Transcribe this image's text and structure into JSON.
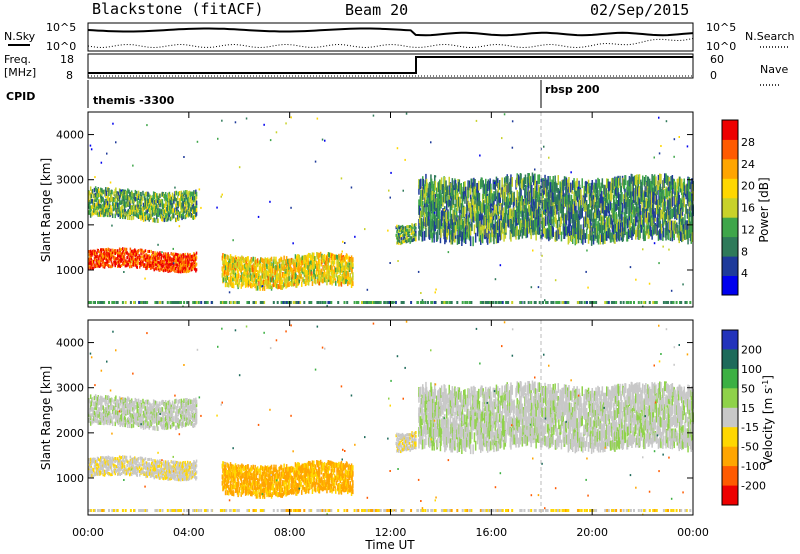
{
  "header": {
    "station": "Blackstone (fitACF)",
    "beam": "Beam 20",
    "date": "02/Sep/2015"
  },
  "noise_panel": {
    "left_label": "N.Sky",
    "right_label": "N.Search",
    "left_ticks": [
      "10^5",
      "10^0"
    ],
    "right_ticks": [
      "10^5",
      "10^0"
    ]
  },
  "freq_panel": {
    "left_label_1": "Freq.",
    "left_label_2": "[MHz]",
    "right_label": "Nave",
    "left_ticks": [
      "18",
      "8"
    ],
    "right_ticks": [
      "60",
      "0"
    ]
  },
  "cpid_panel": {
    "label": "CPID",
    "programs": [
      {
        "name": "themis -3300",
        "start_hour": 0
      },
      {
        "name": "rbsp 200",
        "start_hour": 18
      }
    ]
  },
  "time_axis": {
    "label": "Time UT",
    "ticks": [
      "00:00",
      "04:00",
      "08:00",
      "12:00",
      "16:00",
      "20:00",
      "00:00"
    ]
  },
  "range_axis": {
    "label": "Slant Range [km]",
    "ticks": [
      "1000",
      "2000",
      "3000",
      "4000"
    ]
  },
  "power_colorbar": {
    "label": "Power [dB]",
    "ticks": [
      "4",
      "8",
      "12",
      "16",
      "20",
      "24",
      "28"
    ],
    "colors": [
      "#0000ee",
      "#1e3a9a",
      "#2f7a5a",
      "#3fa64a",
      "#c8d22a",
      "#ffd700",
      "#ffa500",
      "#ff5a00",
      "#ee0000"
    ]
  },
  "velocity_colorbar": {
    "label_main": "Velocity [m s",
    "label_sup": "-1",
    "label_end": "]",
    "ticks": [
      "200",
      "100",
      "50",
      "15",
      "-15",
      "-50",
      "-100",
      "-200"
    ],
    "colors": [
      "#2233bb",
      "#1d6a5a",
      "#3cb043",
      "#8fd24a",
      "#c8c8c8",
      "#ffd700",
      "#ffa500",
      "#ff5a00",
      "#ee0000"
    ]
  },
  "chart_data": {
    "type": "heatmap",
    "x_range_hours": [
      0,
      24
    ],
    "y_range_km": [
      180,
      4500
    ],
    "regions": [
      {
        "t0": 0.0,
        "t1": 4.3,
        "r0": 1050,
        "r1": 1450,
        "power": 26,
        "velocity": -5
      },
      {
        "t0": 0.0,
        "t1": 4.3,
        "r0": 2200,
        "r1": 2800,
        "power": 12,
        "velocity": 5
      },
      {
        "t0": 5.3,
        "t1": 10.5,
        "r0": 700,
        "r1": 1350,
        "power": 18,
        "velocity": -40
      },
      {
        "t0": 12.2,
        "t1": 13.0,
        "r0": 1600,
        "r1": 2000,
        "power": 12,
        "velocity": -5
      },
      {
        "t0": 13.1,
        "t1": 24.0,
        "r0": 1800,
        "r1": 3100,
        "power": 10,
        "velocity": 5
      }
    ]
  }
}
